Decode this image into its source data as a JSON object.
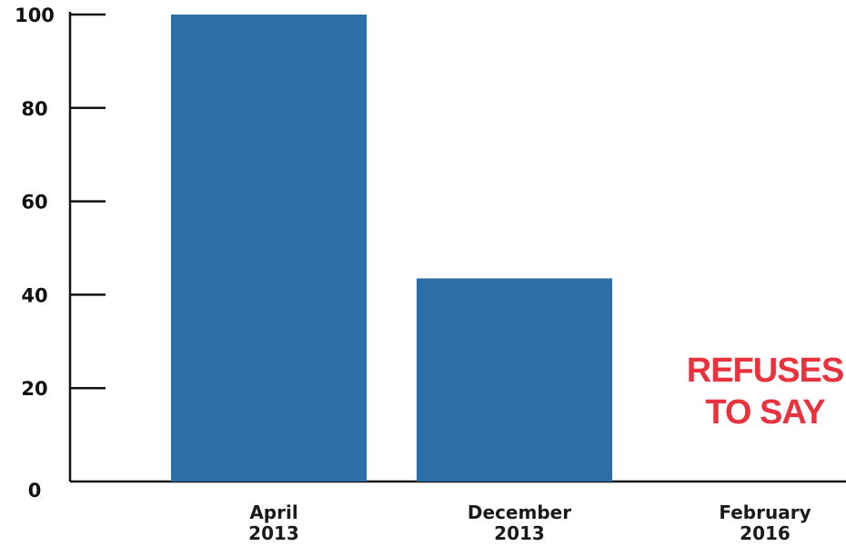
{
  "chart_data": {
    "type": "bar",
    "categories": [
      [
        "April",
        "2013"
      ],
      [
        "December",
        "2013"
      ],
      [
        "February",
        "2016"
      ]
    ],
    "values": [
      100,
      43.5,
      null
    ],
    "ylim": [
      0,
      100
    ],
    "yticks": [
      "0",
      "20",
      "40",
      "60",
      "80",
      "100"
    ],
    "annotation": {
      "category_index": 2,
      "lines": [
        "REFUSES",
        "TO SAY"
      ]
    },
    "colors": {
      "bar": "#2e6ea8",
      "annotation": "#e8333f",
      "axis": "#111111"
    },
    "grid": false,
    "legend": "none"
  }
}
